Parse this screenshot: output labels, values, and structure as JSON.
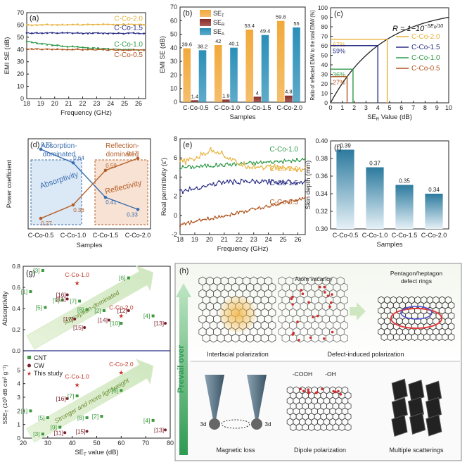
{
  "colors": {
    "c20": "#e8b23a",
    "c15": "#2b2f86",
    "c10": "#2f9a48",
    "c05": "#b0551e",
    "cnt": "#3c9a3c",
    "cw": "#7a1f2a",
    "star": "#c0392b",
    "absorb": "#3b6fb0",
    "reflect": "#b5602a"
  },
  "chart_data": [
    {
      "panel": "a",
      "type": "line",
      "label": "(a)",
      "xlabel": "Frequency (GHz)",
      "ylabel": "EMI SE (dB)",
      "xlim": [
        18,
        26.5
      ],
      "ylim": [
        0,
        70
      ],
      "xticks": [
        18,
        19,
        20,
        21,
        22,
        23,
        24,
        25,
        26
      ],
      "yticks": [
        0,
        10,
        20,
        30,
        40,
        50,
        60,
        70
      ],
      "series": [
        {
          "name": "C-Co-2.0",
          "start": 60,
          "end": 60.5,
          "color_key": "c20"
        },
        {
          "name": "C-Co-1.5",
          "start": 53.4,
          "end": 53.2,
          "color_key": "c15"
        },
        {
          "name": "C-Co-1.0",
          "start": 46.5,
          "end": 39.5,
          "color_key": "c10"
        },
        {
          "name": "C-Co-0.5",
          "start": 40.3,
          "end": 39.5,
          "color_key": "c05"
        }
      ]
    },
    {
      "panel": "b",
      "type": "bar",
      "label": "(b)",
      "xlabel": "Samples",
      "ylabel": "EMI SE (dB)",
      "categories": [
        "C-Co-0.5",
        "C-Co-1.0",
        "C-Co-1.5",
        "C-Co-2.0"
      ],
      "series": [
        {
          "name": "SE_T",
          "values": [
            39.6,
            42,
            53.4,
            59.8
          ],
          "labels": [
            "39.6",
            "42",
            "53.4",
            "59.8"
          ],
          "color": "#f2a93b"
        },
        {
          "name": "SE_R",
          "values": [
            1.4,
            1.9,
            4,
            4.8
          ],
          "labels": [
            "1.4",
            "1.9",
            "4",
            "4.8"
          ],
          "color": "#8a2a26"
        },
        {
          "name": "SE_A",
          "values": [
            38.2,
            40.1,
            49.4,
            55
          ],
          "labels": [
            "38.2",
            "40.1",
            "49.4",
            "55"
          ],
          "color": "#2a8fb8"
        }
      ],
      "legend": [
        "SE",
        "SE",
        "SE"
      ],
      "legend_subs": [
        "T",
        "R",
        "A"
      ],
      "ylim": [
        0,
        70
      ],
      "yticks": [
        0,
        10,
        20,
        30,
        40,
        50,
        60,
        70
      ]
    },
    {
      "panel": "c",
      "type": "line",
      "label": "(c)",
      "xlabel": "SE",
      "xlabel_sub": "R",
      "xlabel_tail": " Value (dB)",
      "ylabel": "Ratio of reflected EMW to the total EMW (%)",
      "xlim": [
        0,
        10
      ],
      "ylim": [
        0,
        100
      ],
      "xticks": [
        0,
        1,
        2,
        3,
        4,
        5,
        6,
        7,
        8,
        9,
        10
      ],
      "yticks": [
        0,
        10,
        20,
        30,
        40,
        50,
        60,
        70,
        80,
        90,
        100
      ],
      "formula": "R = 1−10",
      "formula_exp": "−SE",
      "formula_exp_sub": "R",
      "formula_exp_den": "/10",
      "markers": [
        {
          "name": "C-Co-2.0",
          "x": 4.8,
          "label": "67%",
          "color_key": "c20"
        },
        {
          "name": "C-Co-1.5",
          "x": 4.0,
          "label": "59%",
          "color_key": "c15"
        },
        {
          "name": "C-Co-1.0",
          "x": 1.9,
          "label": "36%",
          "color_key": "c10"
        },
        {
          "name": "C-Co-0.5",
          "x": 1.4,
          "label": "27%",
          "color_key": "c05"
        }
      ]
    },
    {
      "panel": "d",
      "type": "line",
      "label": "(d)",
      "xlabel": "Samples",
      "ylabel": "Power coefficient",
      "categories": [
        "C-Co-0.5",
        "C-Co-1.0",
        "C-Co-1.5",
        "C-Co-2.0"
      ],
      "ylim": [
        0.2,
        0.8
      ],
      "series": [
        {
          "name": "Absorptivity",
          "values": [
            0.73,
            0.64,
            0.41,
            0.33
          ],
          "labels": [
            "0.73",
            "0.64",
            "0.41",
            "0.33"
          ],
          "color_key": "absorb"
        },
        {
          "name": "Reflectivity",
          "values": [
            0.27,
            0.36,
            0.59,
            0.67
          ],
          "labels": [
            "0.27",
            "0.36",
            "0.59",
            "0.67"
          ],
          "color_key": "reflect"
        }
      ],
      "region_left": "Absorption-dominated",
      "region_left_lines": [
        "Absorption-",
        "dominated"
      ],
      "region_right": "Reflection-dominated",
      "region_right_lines": [
        "Reflection-",
        "dominated"
      ]
    },
    {
      "panel": "e",
      "type": "line",
      "label": "(e)",
      "xlabel": "Frequency (GHz)",
      "ylabel": "Real permittivity (ε′)",
      "xlim": [
        18,
        26.5
      ],
      "ylim": [
        -2,
        8
      ],
      "xticks": [
        18,
        19,
        20,
        21,
        22,
        23,
        24,
        25,
        26
      ],
      "yticks": [
        -2,
        0,
        2,
        4,
        6,
        8
      ],
      "series": [
        {
          "name": "C-Co-1.0",
          "base": 5.3,
          "color_key": "c10"
        },
        {
          "name": "C-Co-2.0",
          "base": 5.9,
          "color_key": "c20"
        },
        {
          "name": "C-Co-1.5",
          "base": 3.2,
          "color_key": "c15"
        },
        {
          "name": "C-Co-0.5",
          "base": 0.4,
          "color_key": "c05"
        }
      ]
    },
    {
      "panel": "f",
      "type": "bar",
      "label": "(f)",
      "xlabel": "Samples",
      "ylabel": "Skin depth (mm)",
      "categories": [
        "C-Co-0.5",
        "C-Co-1.0",
        "C-Co-1.5",
        "C-Co-2.0"
      ],
      "values": [
        0.39,
        0.37,
        0.35,
        0.34
      ],
      "labels": [
        "0.39",
        "0.37",
        "0.35",
        "0.34"
      ],
      "ylim": [
        0.3,
        0.4
      ],
      "yticks": [
        0.3,
        0.32,
        0.34,
        0.36,
        0.38,
        0.4
      ]
    },
    {
      "panel": "g",
      "type": "scatter",
      "label": "(g)",
      "xlabel": "SE",
      "xlabel_sub": "T",
      "xlabel_tail": " value (dB)",
      "ylabel_top": "Absorptivity",
      "ylabel_bottom": "SSE",
      "ylabel_bottom_sub": "T",
      "ylabel_bottom_tail": " (10³ dB cm² g⁻¹)",
      "xlim": [
        20,
        80
      ],
      "xticks": [
        20,
        30,
        40,
        50,
        60,
        70,
        80
      ],
      "ylim_top": [
        0.0,
        0.8
      ],
      "yticks_top": [
        0.0,
        0.2,
        0.4,
        0.6,
        0.8
      ],
      "ylim_bottom": [
        0,
        6
      ],
      "yticks_bottom": [
        0,
        1,
        2,
        3,
        4,
        5
      ],
      "arrow_top": "Absorption-dominated",
      "arrow_bottom": "Stronger and more lightweight",
      "legend": [
        "CNT",
        "CW",
        "This study"
      ],
      "top_points": [
        {
          "x": 23,
          "y": 0.56,
          "label": "[1]",
          "kind": "cnt"
        },
        {
          "x": 28,
          "y": 0.76,
          "label": "[3]",
          "kind": "cnt"
        },
        {
          "x": 29,
          "y": 0.41,
          "label": "[5]",
          "kind": "cnt"
        },
        {
          "x": 36,
          "y": 0.48,
          "label": "[9]",
          "kind": "cnt"
        },
        {
          "x": 38,
          "y": 0.53,
          "label": "[16]",
          "kind": "cw"
        },
        {
          "x": 38,
          "y": 0.49,
          "label": "[11]",
          "kind": "cw"
        },
        {
          "x": 43,
          "y": 0.47,
          "label": "[7]",
          "kind": "cnt"
        },
        {
          "x": 41,
          "y": 0.3,
          "label": "[17]",
          "kind": "cw"
        },
        {
          "x": 46,
          "y": 0.39,
          "label": "[8]",
          "kind": "cnt"
        },
        {
          "x": 45,
          "y": 0.22,
          "label": "[15]",
          "kind": "cw"
        },
        {
          "x": 53,
          "y": 0.38,
          "label": "[2]",
          "kind": "cnt"
        },
        {
          "x": 55,
          "y": 0.29,
          "label": "[14]",
          "kind": "cw"
        },
        {
          "x": 60,
          "y": 0.26,
          "label": "[10]",
          "kind": "cnt"
        },
        {
          "x": 63,
          "y": 0.38,
          "label": "[12]",
          "kind": "cw"
        },
        {
          "x": 63,
          "y": 0.69,
          "label": "[6]",
          "kind": "cnt"
        },
        {
          "x": 73,
          "y": 0.33,
          "label": "[4]",
          "kind": "cnt"
        },
        {
          "x": 78,
          "y": 0.26,
          "label": "[13]",
          "kind": "cw"
        },
        {
          "x": 42,
          "y": 0.64,
          "label": "C-Co-1.0",
          "kind": "star"
        },
        {
          "x": 60,
          "y": 0.33,
          "label": "C-Co-2.0",
          "kind": "star"
        }
      ],
      "bottom_points": [
        {
          "x": 23,
          "y": 2.0,
          "label": "[1]",
          "kind": "cnt"
        },
        {
          "x": 28,
          "y": 0.3,
          "label": "[3]",
          "kind": "cnt"
        },
        {
          "x": 30,
          "y": 1.5,
          "label": "[5]",
          "kind": "cnt"
        },
        {
          "x": 35,
          "y": 0.8,
          "label": "[9]",
          "kind": "cnt"
        },
        {
          "x": 37,
          "y": 0.4,
          "label": "[11]",
          "kind": "cw"
        },
        {
          "x": 38,
          "y": 2.9,
          "label": "[16]",
          "kind": "cw"
        },
        {
          "x": 42,
          "y": 3.1,
          "label": "[7]",
          "kind": "cnt"
        },
        {
          "x": 46,
          "y": 1.5,
          "label": "[8]",
          "kind": "cnt"
        },
        {
          "x": 46,
          "y": 0.5,
          "label": "[15]",
          "kind": "cw"
        },
        {
          "x": 52,
          "y": 1.6,
          "label": "[2]",
          "kind": "cnt"
        },
        {
          "x": 60,
          "y": 3.5,
          "label": "[6]",
          "kind": "cnt"
        },
        {
          "x": 73,
          "y": 1.3,
          "label": "[4]",
          "kind": "cnt"
        },
        {
          "x": 78,
          "y": 0.6,
          "label": "[13]",
          "kind": "cw"
        },
        {
          "x": 42,
          "y": 3.9,
          "label": "C-Co-1.0",
          "kind": "star"
        },
        {
          "x": 60,
          "y": 4.8,
          "label": "C-Co-2.0",
          "kind": "star"
        }
      ]
    },
    {
      "panel": "h",
      "type": "diagram",
      "label": "(h)",
      "side_label": "Prevail over",
      "captions": [
        "Interfacial polarization",
        "Defect-induced polarization",
        "Magnetic loss",
        "Dipole polarization",
        "Multiple scatterings"
      ],
      "top_labels": [
        "Atom vacancy",
        "Pentagon/heptagon",
        "defect rings"
      ],
      "group_labels": [
        "-COOH",
        "-OH"
      ],
      "orbital_labels": [
        "3d",
        "3d"
      ]
    }
  ]
}
